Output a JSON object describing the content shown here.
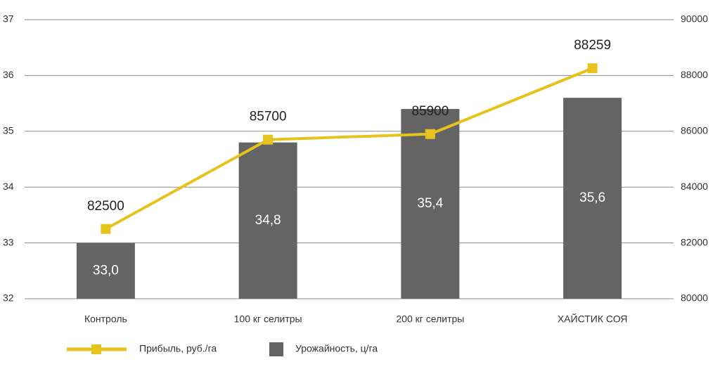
{
  "chart_data": {
    "type": "combo",
    "categories": [
      "Контроль",
      "100 кг селитры",
      "200 кг селитры",
      "ХАЙСТИК СОЯ"
    ],
    "series": [
      {
        "name": "Прибыль, руб./га",
        "type": "line",
        "axis": "y2",
        "color": "#e5c31c",
        "values": [
          82500,
          85700,
          85900,
          88259
        ]
      },
      {
        "name": "Урожайность, ц/га",
        "type": "bar",
        "color": "#646464",
        "values": [
          33.0,
          34.8,
          35.4,
          35.6
        ],
        "value_labels": [
          "33,0",
          "34,8",
          "35,4",
          "35,6"
        ]
      }
    ],
    "ylim": [
      32,
      37
    ],
    "yticks": [
      32,
      33,
      34,
      35,
      36,
      37
    ],
    "y2lim": [
      80000,
      90000
    ],
    "y2ticks": [
      80000,
      82000,
      84000,
      86000,
      88000,
      90000
    ],
    "grid": true
  }
}
